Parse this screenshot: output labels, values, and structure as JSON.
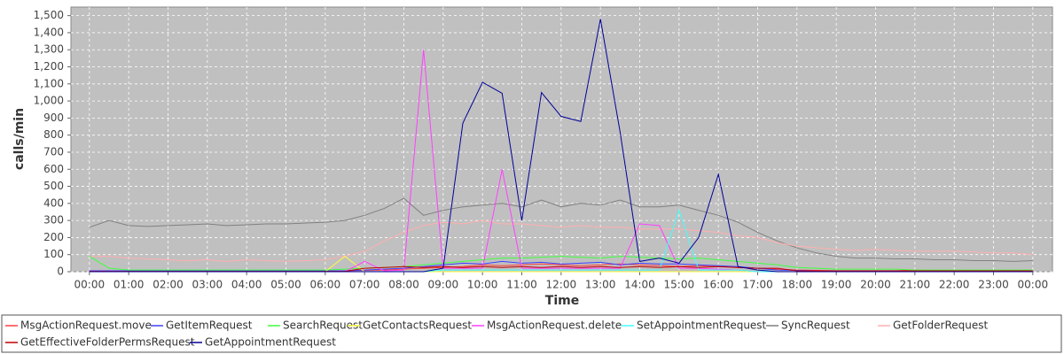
{
  "chart_data": {
    "type": "line",
    "xlabel": "Time",
    "ylabel": "calls/min",
    "x": [
      0,
      0.5,
      1,
      1.5,
      2,
      2.5,
      3,
      3.5,
      4,
      4.5,
      5,
      5.5,
      6,
      6.5,
      7,
      7.5,
      8,
      8.5,
      9,
      9.5,
      10,
      10.5,
      11,
      11.5,
      12,
      12.5,
      13,
      13.5,
      14,
      14.5,
      15,
      15.5,
      16,
      16.5,
      17,
      17.5,
      18,
      18.5,
      19,
      19.5,
      20,
      20.5,
      21,
      21.5,
      22,
      22.5,
      23,
      23.5,
      24
    ],
    "xlim": [
      -0.47,
      24.5
    ],
    "xticks": [
      {
        "value": 0,
        "label": "00:00"
      },
      {
        "value": 1,
        "label": "01:00"
      },
      {
        "value": 2,
        "label": "02:00"
      },
      {
        "value": 3,
        "label": "03:00"
      },
      {
        "value": 4,
        "label": "04:00"
      },
      {
        "value": 5,
        "label": "05:00"
      },
      {
        "value": 6,
        "label": "06:00"
      },
      {
        "value": 7,
        "label": "07:00"
      },
      {
        "value": 8,
        "label": "08:00"
      },
      {
        "value": 9,
        "label": "09:00"
      },
      {
        "value": 10,
        "label": "10:00"
      },
      {
        "value": 11,
        "label": "11:00"
      },
      {
        "value": 12,
        "label": "12:00"
      },
      {
        "value": 13,
        "label": "13:00"
      },
      {
        "value": 14,
        "label": "14:00"
      },
      {
        "value": 15,
        "label": "15:00"
      },
      {
        "value": 16,
        "label": "16:00"
      },
      {
        "value": 17,
        "label": "17:00"
      },
      {
        "value": 18,
        "label": "18:00"
      },
      {
        "value": 19,
        "label": "19:00"
      },
      {
        "value": 20,
        "label": "20:00"
      },
      {
        "value": 21,
        "label": "21:00"
      },
      {
        "value": 22,
        "label": "22:00"
      },
      {
        "value": 23,
        "label": "23:00"
      },
      {
        "value": 24,
        "label": "00:00"
      }
    ],
    "ylim": [
      0,
      1550
    ],
    "yticks": [
      0,
      100,
      200,
      300,
      400,
      500,
      600,
      700,
      800,
      900,
      {
        "value": 1000,
        "label": "1,000"
      },
      {
        "value": 1100,
        "label": "1,100"
      },
      {
        "value": 1200,
        "label": "1,200"
      },
      {
        "value": 1300,
        "label": "1,300"
      },
      {
        "value": 1400,
        "label": "1,400"
      },
      {
        "value": 1500,
        "label": "1,500"
      }
    ],
    "grid": true,
    "legend": "bottom",
    "series": [
      {
        "name": "SyncRequest",
        "color": "#808080",
        "values": [
          260,
          300,
          270,
          265,
          270,
          275,
          280,
          270,
          275,
          280,
          280,
          285,
          290,
          300,
          330,
          370,
          430,
          330,
          360,
          380,
          390,
          400,
          380,
          420,
          380,
          400,
          390,
          420,
          380,
          380,
          390,
          360,
          330,
          290,
          230,
          180,
          140,
          110,
          90,
          80,
          80,
          75,
          75,
          70,
          70,
          65,
          65,
          60,
          65
        ]
      },
      {
        "name": "GetFolderRequest",
        "color": "#ffafaf",
        "values": [
          90,
          90,
          80,
          75,
          70,
          65,
          70,
          60,
          70,
          65,
          60,
          65,
          70,
          90,
          120,
          180,
          230,
          270,
          290,
          280,
          300,
          280,
          280,
          270,
          260,
          270,
          260,
          260,
          250,
          250,
          250,
          240,
          230,
          210,
          200,
          170,
          150,
          140,
          130,
          125,
          130,
          125,
          120,
          120,
          120,
          115,
          110,
          110,
          100
        ]
      },
      {
        "name": "MsgActionRequest.move",
        "color": "#ff4040",
        "values": [
          2,
          2,
          2,
          2,
          2,
          2,
          2,
          2,
          2,
          2,
          2,
          2,
          5,
          5,
          8,
          10,
          15,
          20,
          25,
          30,
          40,
          35,
          40,
          45,
          40,
          35,
          40,
          45,
          40,
          35,
          30,
          35,
          30,
          25,
          20,
          15,
          10,
          8,
          5,
          5,
          5,
          5,
          10,
          5,
          5,
          5,
          5,
          5,
          5
        ]
      },
      {
        "name": "GetItemRequest",
        "color": "#4040ff",
        "values": [
          5,
          5,
          5,
          5,
          5,
          5,
          5,
          5,
          5,
          5,
          5,
          5,
          5,
          5,
          10,
          15,
          20,
          30,
          40,
          50,
          45,
          60,
          50,
          55,
          45,
          50,
          55,
          40,
          50,
          45,
          45,
          40,
          35,
          30,
          20,
          10,
          8,
          5,
          5,
          5,
          5,
          5,
          5,
          5,
          5,
          5,
          5,
          5,
          5
        ]
      },
      {
        "name": "SearchRequest",
        "color": "#40ff40",
        "values": [
          90,
          20,
          10,
          10,
          10,
          10,
          10,
          10,
          10,
          10,
          10,
          10,
          10,
          15,
          20,
          25,
          30,
          40,
          50,
          60,
          70,
          80,
          80,
          85,
          90,
          85,
          80,
          90,
          85,
          80,
          75,
          80,
          70,
          60,
          50,
          40,
          25,
          20,
          15,
          15,
          15,
          15,
          10,
          10,
          10,
          10,
          10,
          10,
          10
        ]
      },
      {
        "name": "GetContactsRequest",
        "color": "#ffff40",
        "values": [
          0,
          0,
          0,
          0,
          0,
          0,
          0,
          0,
          0,
          0,
          0,
          0,
          0,
          90,
          0,
          0,
          0,
          0,
          0,
          0,
          0,
          0,
          0,
          0,
          0,
          0,
          0,
          0,
          0,
          0,
          0,
          0,
          0,
          0,
          0,
          0,
          0,
          0,
          0,
          0,
          0,
          0,
          0,
          0,
          0,
          0,
          0,
          0,
          0
        ]
      },
      {
        "name": "MsgActionRequest.delete",
        "color": "#ff40ff",
        "values": [
          0,
          0,
          0,
          0,
          0,
          0,
          0,
          0,
          0,
          0,
          0,
          0,
          0,
          0,
          60,
          5,
          10,
          1300,
          20,
          20,
          20,
          600,
          20,
          20,
          20,
          20,
          20,
          20,
          280,
          270,
          20,
          20,
          15,
          10,
          0,
          0,
          0,
          0,
          0,
          0,
          0,
          0,
          0,
          0,
          0,
          0,
          0,
          0,
          0
        ]
      },
      {
        "name": "SetAppointmentRequest",
        "color": "#40ffff",
        "values": [
          0,
          0,
          0,
          0,
          0,
          0,
          0,
          0,
          0,
          0,
          0,
          0,
          0,
          0,
          0,
          0,
          0,
          0,
          10,
          10,
          10,
          10,
          10,
          10,
          10,
          10,
          10,
          10,
          10,
          10,
          360,
          10,
          10,
          10,
          0,
          0,
          0,
          0,
          0,
          0,
          0,
          0,
          0,
          0,
          0,
          0,
          0,
          0,
          0
        ]
      },
      {
        "name": "GetEffectiveFolderPermsRequest",
        "color": "#c00000",
        "values": [
          2,
          2,
          2,
          2,
          2,
          2,
          2,
          2,
          2,
          2,
          2,
          2,
          2,
          2,
          20,
          25,
          30,
          25,
          30,
          25,
          30,
          25,
          30,
          25,
          30,
          25,
          30,
          25,
          30,
          25,
          30,
          25,
          30,
          25,
          20,
          20,
          5,
          5,
          5,
          5,
          5,
          5,
          5,
          5,
          5,
          5,
          5,
          5,
          5
        ]
      },
      {
        "name": "GetAppointmentRequest",
        "color": "#000099",
        "values": [
          0,
          0,
          0,
          0,
          0,
          0,
          0,
          0,
          0,
          0,
          0,
          0,
          0,
          0,
          0,
          0,
          0,
          0,
          20,
          870,
          1110,
          1045,
          300,
          1050,
          910,
          880,
          1480,
          820,
          60,
          80,
          50,
          200,
          570,
          30,
          10,
          0,
          0,
          0,
          0,
          0,
          0,
          0,
          0,
          0,
          0,
          0,
          0,
          0,
          0
        ]
      }
    ]
  }
}
